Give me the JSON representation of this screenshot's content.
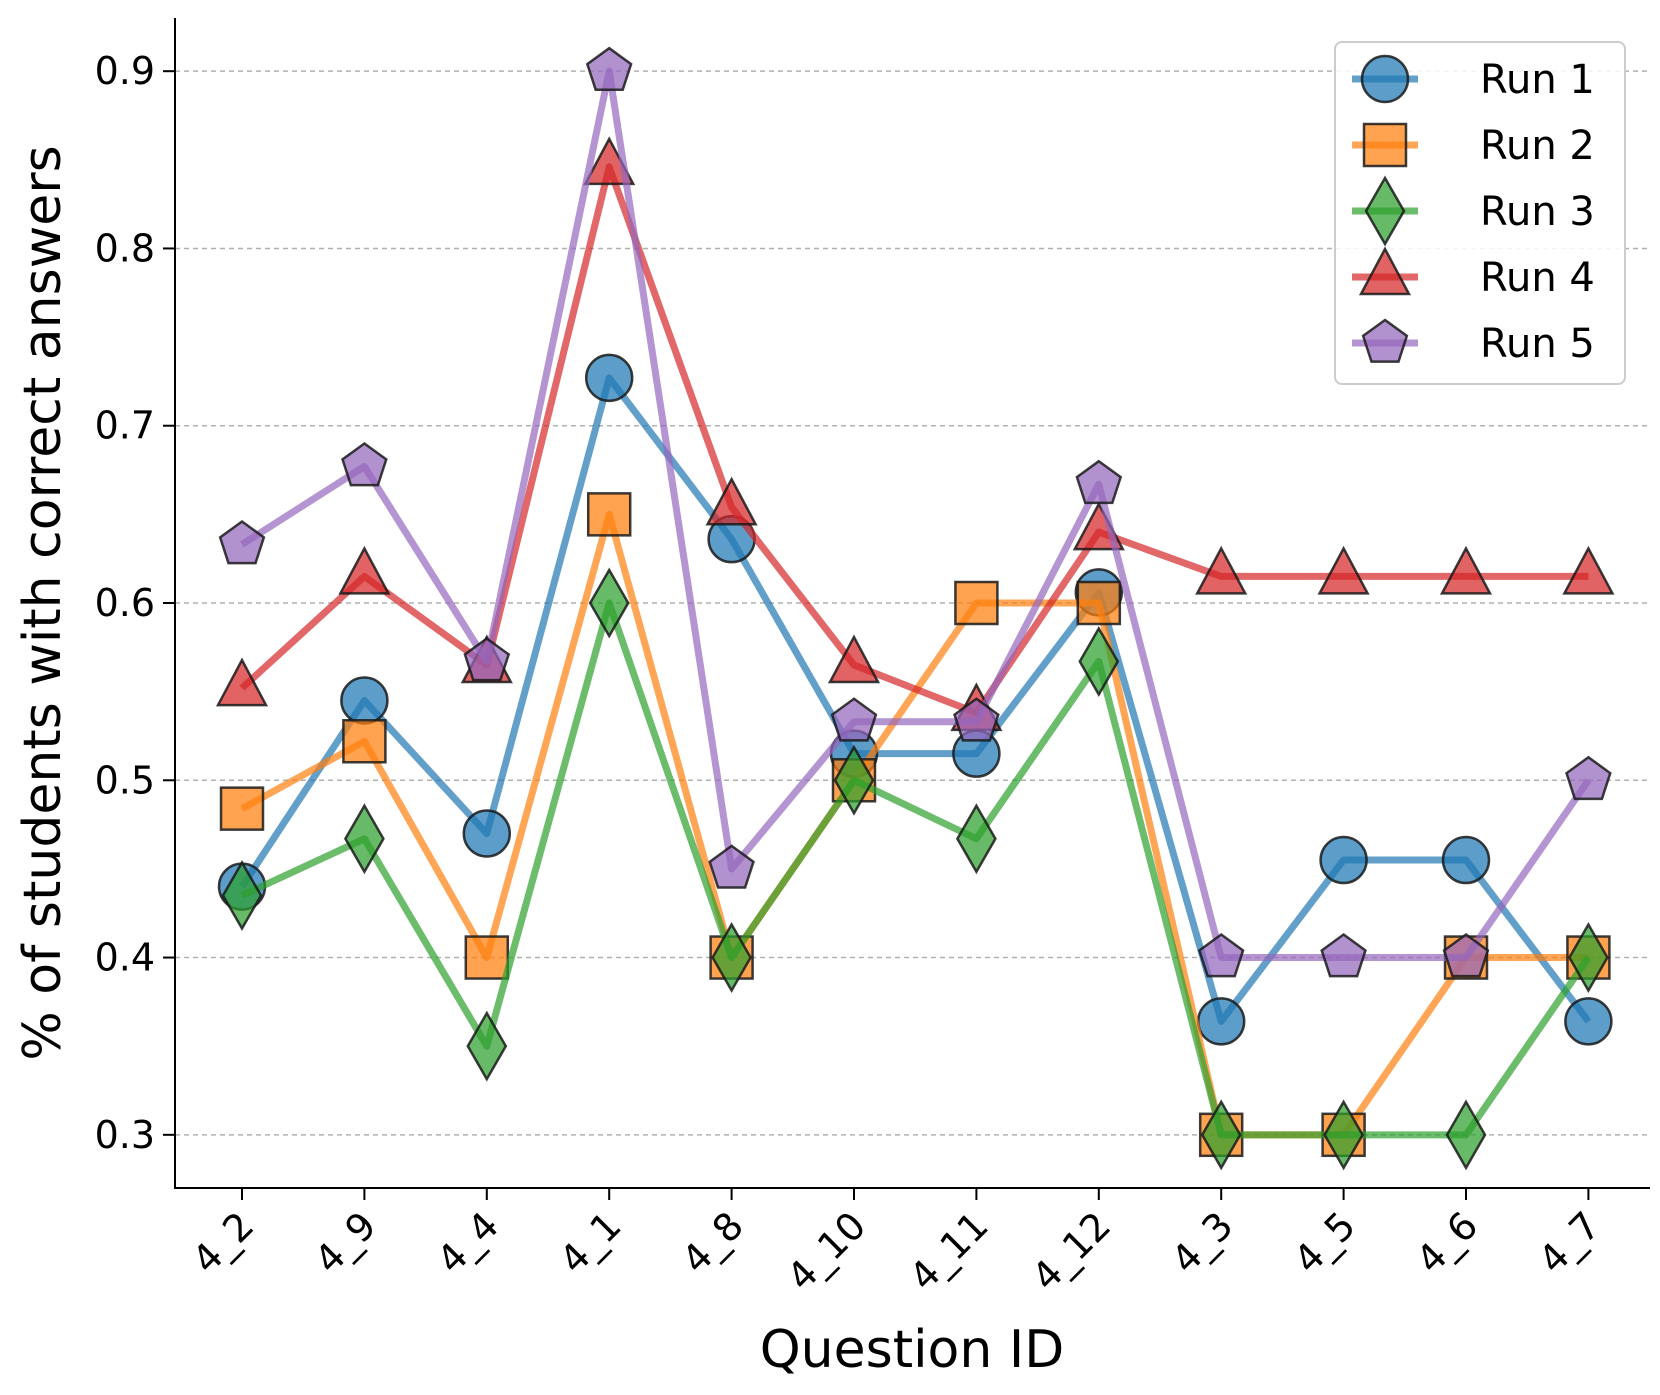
{
  "chart_data": {
    "type": "line",
    "title": "",
    "xlabel": "Question ID",
    "ylabel": "% of students with correct answers",
    "categories": [
      "4_2",
      "4_9",
      "4_4",
      "4_1",
      "4_8",
      "4_10",
      "4_11",
      "4_12",
      "4_3",
      "4_5",
      "4_6",
      "4_7"
    ],
    "ylim": [
      0.27,
      0.93
    ],
    "yticks": [
      0.3,
      0.4,
      0.5,
      0.6,
      0.7,
      0.8,
      0.9
    ],
    "ytick_labels": [
      "0.3",
      "0.4",
      "0.5",
      "0.6",
      "0.7",
      "0.8",
      "0.9"
    ],
    "grid": "horizontal dashed",
    "legend_position": "top-right",
    "series": [
      {
        "name": "Run 1",
        "color": "#1f77b4",
        "marker": "circle",
        "values": [
          0.44,
          0.545,
          0.47,
          0.727,
          0.636,
          0.515,
          0.515,
          0.606,
          0.364,
          0.455,
          0.455,
          0.364
        ]
      },
      {
        "name": "Run 2",
        "color": "#ff7f0e",
        "marker": "square",
        "values": [
          0.484,
          0.522,
          0.4,
          0.65,
          0.4,
          0.5,
          0.6,
          0.6,
          0.3,
          0.3,
          0.4,
          0.4
        ]
      },
      {
        "name": "Run 3",
        "color": "#2ca02c",
        "marker": "diamond",
        "values": [
          0.435,
          0.467,
          0.35,
          0.6,
          0.4,
          0.5,
          0.467,
          0.567,
          0.3,
          0.3,
          0.3,
          0.4
        ]
      },
      {
        "name": "Run 4",
        "color": "#d62728",
        "marker": "triangle",
        "values": [
          0.552,
          0.615,
          0.565,
          0.846,
          0.654,
          0.565,
          0.538,
          0.64,
          0.615,
          0.615,
          0.615,
          0.615
        ]
      },
      {
        "name": "Run 5",
        "color": "#9467bd",
        "marker": "pentagon",
        "values": [
          0.633,
          0.677,
          0.567,
          0.9,
          0.45,
          0.533,
          0.533,
          0.667,
          0.4,
          0.4,
          0.4,
          0.5
        ]
      }
    ]
  }
}
